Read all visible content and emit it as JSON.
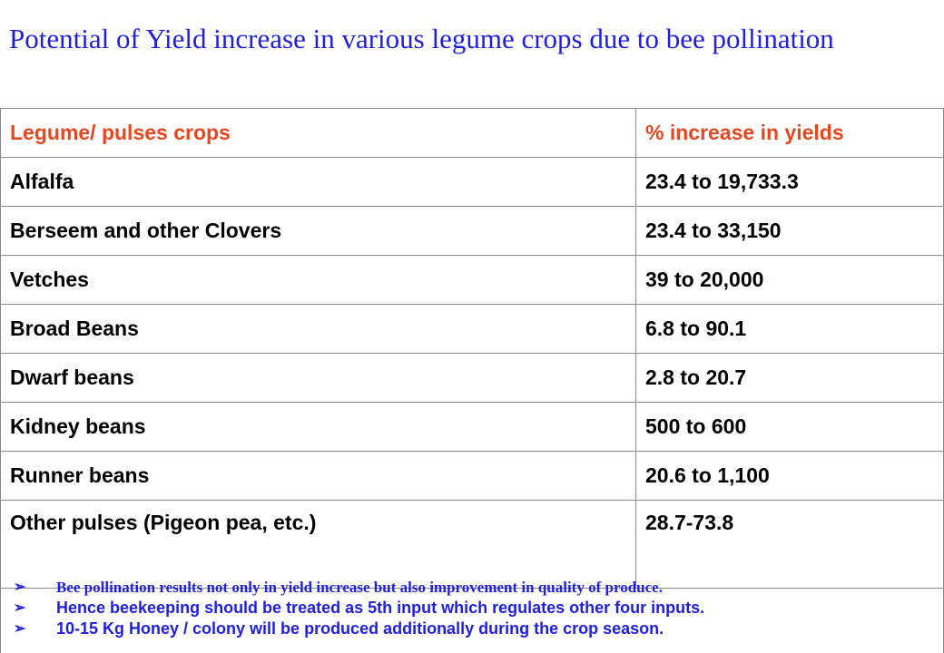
{
  "title": "Potential of Yield increase in various legume crops due to bee pollination",
  "table": {
    "headers": [
      "Legume/ pulses crops",
      "% increase in yields"
    ],
    "rows": [
      [
        "Alfalfa",
        "23.4 to 19,733.3"
      ],
      [
        "Berseem and other Clovers",
        "23.4 to 33,150"
      ],
      [
        "Vetches",
        "39 to 20,000"
      ],
      [
        "Broad Beans",
        "6.8 to 90.1"
      ],
      [
        "Dwarf beans",
        "2.8 to 20.7"
      ],
      [
        "Kidney beans",
        "500 to 600"
      ],
      [
        "Runner beans",
        "20.6 to 1,100"
      ],
      [
        "Other pulses (Pigeon pea, etc.)",
        "28.7-73.8"
      ]
    ]
  },
  "notes": {
    "bullet": "➢",
    "items": [
      "Bee pollination results not only in yield increase but also improvement in quality of produce.",
      "Hence beekeeping should be treated as 5th input which regulates other four inputs.",
      "10-15 Kg Honey / colony will be produced additionally during the crop season."
    ]
  },
  "colors": {
    "title": "#1f1fe0",
    "header_text": "#e8461e",
    "notes_text": "#1f1fe0",
    "border": "#8a8a8a"
  }
}
